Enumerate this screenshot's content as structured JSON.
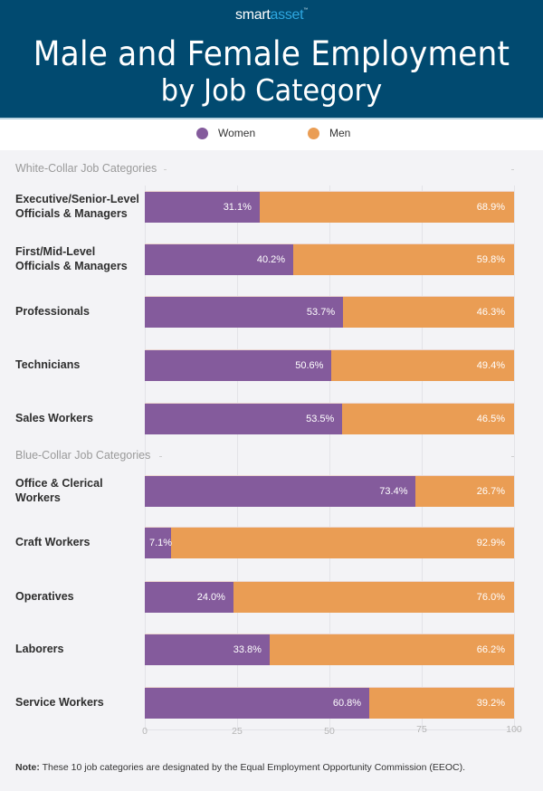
{
  "brand": {
    "logo_part1": "smart",
    "logo_part2": "asset",
    "logo_tm": "™"
  },
  "header": {
    "title_line1": "Male and Female Employment",
    "title_line2": "by Job Category"
  },
  "legend": [
    {
      "label": "Women",
      "color": "#845b9c"
    },
    {
      "label": "Men",
      "color": "#ea9d54"
    }
  ],
  "note": {
    "label": "Note:",
    "text": " These 10 job categories are designated by the Equal Employment Opportunity Commission (EEOC)."
  },
  "chart_data": {
    "type": "bar",
    "orientation": "horizontal",
    "stacked": true,
    "title": "Male and Female Employment by Job Category",
    "xlabel": "",
    "ylabel": "",
    "xlim": [
      0,
      100
    ],
    "x_ticks": [
      "0",
      "25",
      "50",
      "75",
      "100"
    ],
    "grid": true,
    "legend_position": "top-center",
    "groups": [
      {
        "label": "White-Collar Job Categories",
        "categories": [
          {
            "name": "Executive/Senior-Level Officials & Managers",
            "lines": [
              "Executive/Senior-Level",
              "Officials & Managers"
            ],
            "women": 31.1,
            "men": 68.9,
            "women_label": "31.1%",
            "men_label": "68.9%"
          },
          {
            "name": "First/Mid-Level Officials & Managers",
            "lines": [
              "First/Mid-Level",
              "Officials & Managers"
            ],
            "women": 40.2,
            "men": 59.8,
            "women_label": "40.2%",
            "men_label": "59.8%"
          },
          {
            "name": "Professionals",
            "lines": [
              "Professionals"
            ],
            "women": 53.7,
            "men": 46.3,
            "women_label": "53.7%",
            "men_label": "46.3%"
          },
          {
            "name": "Technicians",
            "lines": [
              "Technicians"
            ],
            "women": 50.6,
            "men": 49.4,
            "women_label": "50.6%",
            "men_label": "49.4%"
          },
          {
            "name": "Sales Workers",
            "lines": [
              "Sales Workers"
            ],
            "women": 53.5,
            "men": 46.5,
            "women_label": "53.5%",
            "men_label": "46.5%"
          }
        ]
      },
      {
        "label": "Blue-Collar Job Categories",
        "categories": [
          {
            "name": "Office & Clerical Workers",
            "lines": [
              "Office & Clerical",
              "Workers"
            ],
            "women": 73.4,
            "men": 26.7,
            "women_label": "73.4%",
            "men_label": "26.7%"
          },
          {
            "name": "Craft Workers",
            "lines": [
              "Craft Workers"
            ],
            "women": 7.1,
            "men": 92.9,
            "women_label": "7.1%",
            "men_label": "92.9%"
          },
          {
            "name": "Operatives",
            "lines": [
              "Operatives"
            ],
            "women": 24.0,
            "men": 76.0,
            "women_label": "24.0%",
            "men_label": "76.0%"
          },
          {
            "name": "Laborers",
            "lines": [
              "Laborers"
            ],
            "women": 33.8,
            "men": 66.2,
            "women_label": "33.8%",
            "men_label": "66.2%"
          },
          {
            "name": "Service Workers",
            "lines": [
              "Service Workers"
            ],
            "women": 60.8,
            "men": 39.2,
            "women_label": "60.8%",
            "men_label": "39.2%"
          }
        ]
      }
    ],
    "series": [
      {
        "name": "Women",
        "color": "#845b9c",
        "values": [
          31.1,
          40.2,
          53.7,
          50.6,
          53.5,
          73.4,
          7.1,
          24.0,
          33.8,
          60.8
        ]
      },
      {
        "name": "Men",
        "color": "#ea9d54",
        "values": [
          68.9,
          59.8,
          46.3,
          49.4,
          46.5,
          26.7,
          92.9,
          76.0,
          66.2,
          39.2
        ]
      }
    ]
  }
}
